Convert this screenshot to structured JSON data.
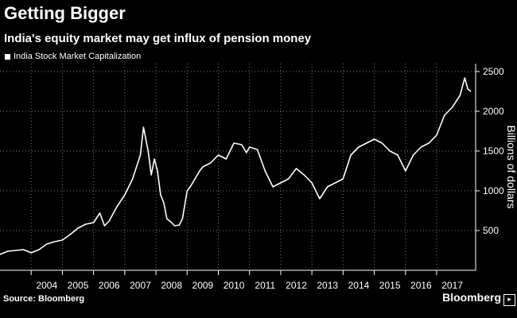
{
  "header": {
    "title": "Getting Bigger",
    "subtitle": "India's equity market may get influx of pension money"
  },
  "footer": {
    "source": "Source: Bloomberg",
    "brand": "Bloomberg"
  },
  "chart_data": {
    "type": "line",
    "title": "Getting Bigger",
    "subtitle": "India's equity market may get influx of pension money",
    "ylabel": "Billions of dollars",
    "xlabel": "",
    "legend": "top-left",
    "grid": true,
    "ylim": [
      0,
      2600
    ],
    "xlim": [
      2003.0,
      2018.25
    ],
    "yticks": [
      500,
      1000,
      1500,
      2000,
      2500
    ],
    "xticks": [
      "2004",
      "2005",
      "2006",
      "2007",
      "2008",
      "2009",
      "2010",
      "2011",
      "2012",
      "2013",
      "2014",
      "2015",
      "2016",
      "2017"
    ],
    "series": [
      {
        "name": "India Stock Market Capitalization",
        "color": "#ffffff",
        "x": [
          2003.0,
          2003.25,
          2003.5,
          2003.75,
          2004.0,
          2004.25,
          2004.5,
          2004.75,
          2005.0,
          2005.25,
          2005.5,
          2005.75,
          2006.0,
          2006.2,
          2006.35,
          2006.5,
          2006.75,
          2007.0,
          2007.25,
          2007.5,
          2007.6,
          2007.75,
          2007.85,
          2007.95,
          2008.05,
          2008.15,
          2008.25,
          2008.35,
          2008.5,
          2008.6,
          2008.75,
          2008.85,
          2009.0,
          2009.1,
          2009.25,
          2009.4,
          2009.5,
          2009.75,
          2010.0,
          2010.25,
          2010.5,
          2010.75,
          2010.9,
          2011.0,
          2011.25,
          2011.5,
          2011.75,
          2012.0,
          2012.25,
          2012.5,
          2012.75,
          2013.0,
          2013.25,
          2013.5,
          2013.75,
          2014.0,
          2014.25,
          2014.5,
          2014.75,
          2015.0,
          2015.25,
          2015.5,
          2015.75,
          2016.0,
          2016.25,
          2016.5,
          2016.75,
          2017.0,
          2017.25,
          2017.5,
          2017.75,
          2017.9,
          2018.0,
          2018.1
        ],
        "y": [
          200,
          240,
          250,
          260,
          220,
          260,
          330,
          360,
          380,
          450,
          530,
          580,
          600,
          720,
          560,
          620,
          800,
          950,
          1150,
          1450,
          1800,
          1500,
          1200,
          1400,
          1250,
          950,
          850,
          650,
          600,
          560,
          570,
          650,
          1000,
          1050,
          1150,
          1250,
          1300,
          1350,
          1450,
          1400,
          1600,
          1580,
          1480,
          1550,
          1520,
          1250,
          1050,
          1100,
          1150,
          1280,
          1200,
          1100,
          900,
          1050,
          1100,
          1150,
          1450,
          1550,
          1600,
          1650,
          1600,
          1500,
          1450,
          1250,
          1450,
          1550,
          1600,
          1700,
          1950,
          2050,
          2200,
          2420,
          2280,
          2250
        ]
      }
    ]
  }
}
